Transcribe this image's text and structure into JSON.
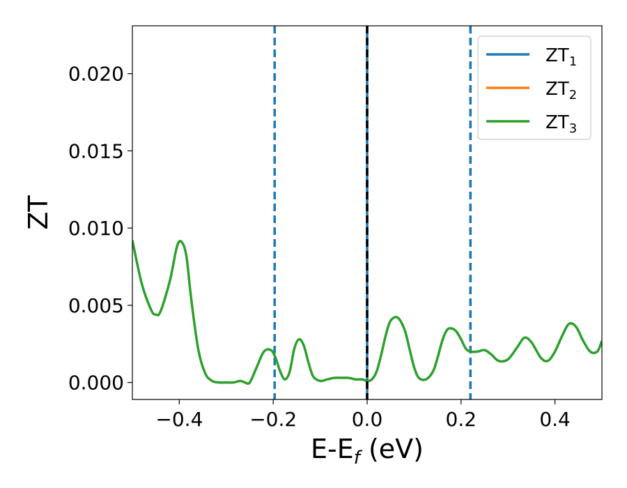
{
  "chart_data": {
    "type": "line",
    "xlabel": "E-E",
    "xlabel_sub": "f",
    "xlabel_unit": " (eV)",
    "ylabel": "ZT",
    "xlim": [
      -0.5,
      0.5
    ],
    "ylim": [
      -0.0011,
      0.0231
    ],
    "xticks": [
      -0.4,
      -0.2,
      0.0,
      0.2,
      0.4
    ],
    "xtick_labels": [
      "−0.4",
      "−0.2",
      "0.0",
      "0.2",
      "0.4"
    ],
    "yticks": [
      0.0,
      0.005,
      0.01,
      0.015,
      0.02
    ],
    "ytick_labels": [
      "0.000",
      "0.005",
      "0.010",
      "0.015",
      "0.020"
    ],
    "grid": false,
    "legend_position": "top-right",
    "vlines": [
      {
        "x": -0.197,
        "style": "dashed",
        "color": "#1f77b4"
      },
      {
        "x": 0.0,
        "style": "solid",
        "color": "#1f77b4"
      },
      {
        "x": 0.0,
        "style": "dashed",
        "color": "#000000"
      },
      {
        "x": 0.22,
        "style": "dashed",
        "color": "#1f77b4"
      }
    ],
    "series": [
      {
        "name": "ZT",
        "sub": "1",
        "color": "#1f77b4"
      },
      {
        "name": "ZT",
        "sub": "2",
        "color": "#ff7f0e"
      },
      {
        "name": "ZT",
        "sub": "3",
        "color": "#2ca02c",
        "x": [
          -0.5,
          -0.48,
          -0.46,
          -0.45,
          -0.44,
          -0.42,
          -0.405,
          -0.395,
          -0.385,
          -0.375,
          -0.36,
          -0.345,
          -0.33,
          -0.315,
          -0.3,
          -0.285,
          -0.27,
          -0.26,
          -0.25,
          -0.235,
          -0.22,
          -0.205,
          -0.195,
          -0.185,
          -0.175,
          -0.165,
          -0.155,
          -0.145,
          -0.135,
          -0.125,
          -0.115,
          -0.1,
          -0.085,
          -0.07,
          -0.055,
          -0.04,
          -0.025,
          -0.01,
          0.0,
          0.01,
          0.02,
          0.03,
          0.04,
          0.05,
          0.065,
          0.08,
          0.09,
          0.1,
          0.11,
          0.125,
          0.14,
          0.15,
          0.16,
          0.17,
          0.18,
          0.19,
          0.2,
          0.21,
          0.22,
          0.235,
          0.25,
          0.265,
          0.28,
          0.3,
          0.32,
          0.335,
          0.35,
          0.37,
          0.385,
          0.4,
          0.415,
          0.43,
          0.445,
          0.46,
          0.475,
          0.49,
          0.5
        ],
        "values": [
          0.0092,
          0.0064,
          0.0047,
          0.0044,
          0.0046,
          0.0066,
          0.0088,
          0.0091,
          0.0082,
          0.0055,
          0.0022,
          0.0006,
          0.0001,
          0.0,
          0.0,
          0.0,
          0.0001,
          0.0,
          0.0,
          0.001,
          0.002,
          0.0021,
          0.0016,
          0.0007,
          0.0002,
          0.0007,
          0.0022,
          0.0028,
          0.0024,
          0.0013,
          0.0004,
          0.0001,
          0.0002,
          0.0003,
          0.0003,
          0.0003,
          0.0002,
          0.0002,
          0.0001,
          0.0002,
          0.0007,
          0.0018,
          0.0031,
          0.004,
          0.0042,
          0.0034,
          0.0022,
          0.001,
          0.0003,
          0.0002,
          0.0007,
          0.0016,
          0.0027,
          0.0034,
          0.0035,
          0.0033,
          0.0028,
          0.0022,
          0.002,
          0.002,
          0.0021,
          0.0018,
          0.0014,
          0.0015,
          0.0023,
          0.0029,
          0.0026,
          0.0016,
          0.0014,
          0.002,
          0.003,
          0.0038,
          0.0036,
          0.0027,
          0.002,
          0.002,
          0.0027
        ]
      }
    ]
  }
}
